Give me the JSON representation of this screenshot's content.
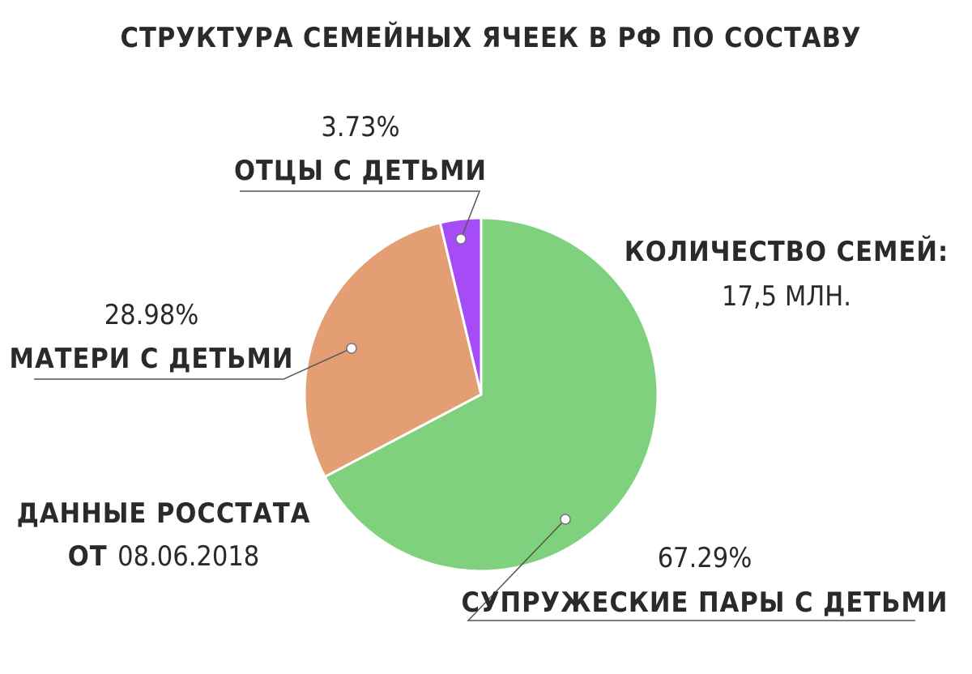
{
  "chart_data": {
    "type": "pie",
    "title": "СТРУКТУРА СЕМЕЙНЫХ ЯЧЕЕК В РФ ПО СОСТАВУ",
    "slices": [
      {
        "label": "СУПРУЖЕСКИЕ ПАРЫ С ДЕТЬМИ",
        "value": 67.29,
        "value_label": "67.29%",
        "color": "#80d17e"
      },
      {
        "label": "МАТЕРИ С ДЕТЬМИ",
        "value": 28.98,
        "value_label": "28.98%",
        "color": "#e39f73"
      },
      {
        "label": "ОТЦЫ С ДЕТЬМИ",
        "value": 3.73,
        "value_label": "3.73%",
        "color": "#a64cf7"
      }
    ],
    "annotations": {
      "total_label": "КОЛИЧЕСТВО СЕМЕЙ:",
      "total_value": "17,5 МЛН.",
      "source_line1": "ДАННЫЕ РОССТАТА",
      "source_prefix": "ОТ",
      "source_date": "08.06.2018"
    }
  }
}
